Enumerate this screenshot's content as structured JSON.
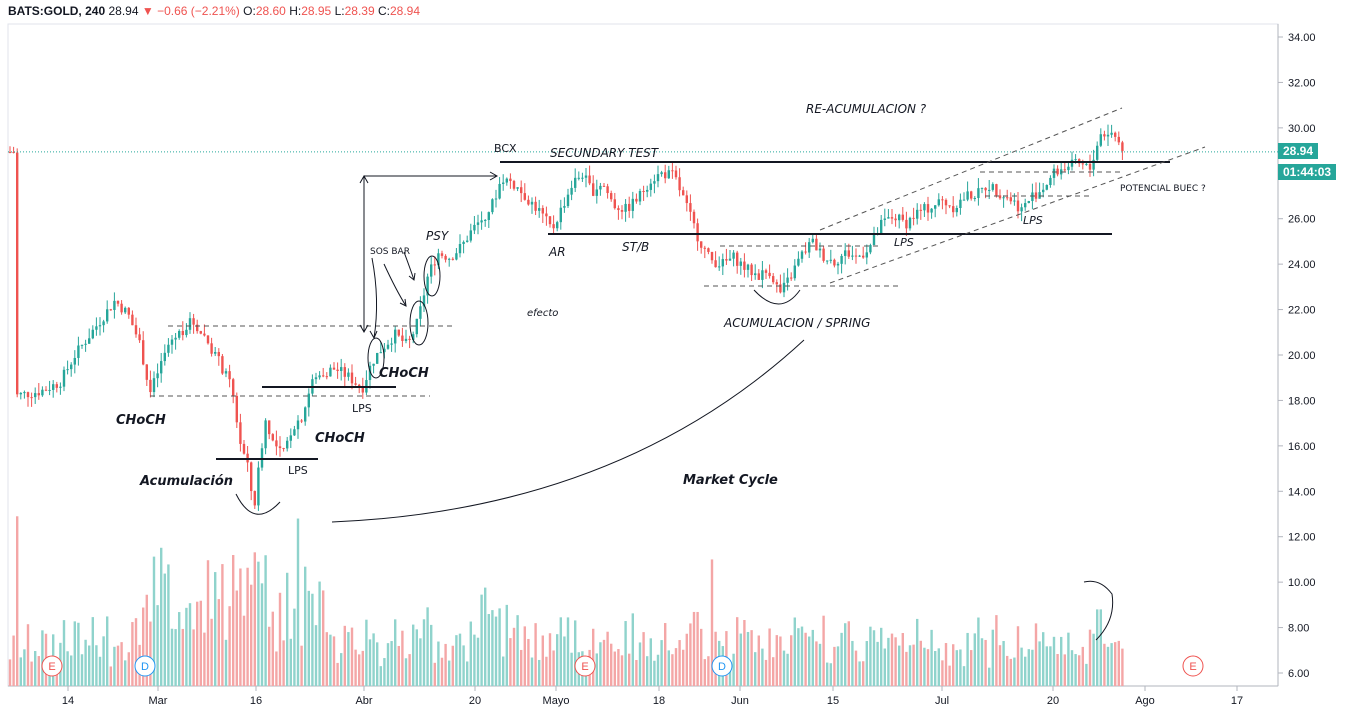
{
  "header": {
    "symbol": "BATS:GOLD, 240",
    "last": "28.94",
    "arrow": "▼",
    "change": "−0.66 (−2.21%)",
    "o_label": "O:",
    "o_value": "28.60",
    "h_label": "H:",
    "h_value": "28.95",
    "l_label": "L:",
    "l_value": "28.39",
    "c_label": "C:",
    "c_value": "28.94"
  },
  "price_tags": {
    "last_price": "28.94",
    "countdown": "01:44:03"
  },
  "colors": {
    "up": "#26a69a",
    "down": "#ef5350",
    "vol_up": "#8fd3cc",
    "vol_down": "#f4a6a6",
    "price_line": "#26a69a",
    "grid_border": "#d1d4dc",
    "annotation": "#131722"
  },
  "chart_data": {
    "type": "candlestick",
    "y_axis": {
      "range": [
        5.6,
        35.0
      ],
      "ticks": [
        "34.00",
        "32.00",
        "30.00",
        "28.00",
        "26.00",
        "24.00",
        "22.00",
        "20.00",
        "18.00",
        "16.00",
        "14.00",
        "12.00",
        "10.00",
        "8.00",
        "6.00"
      ]
    },
    "x_axis": {
      "ticks": [
        "14",
        "Mar",
        "16",
        "Abr",
        "20",
        "Mayo",
        "18",
        "Jun",
        "15",
        "Jul",
        "20",
        "Ago",
        "17"
      ]
    },
    "events": [
      "E",
      "D",
      "E",
      "D",
      "E"
    ],
    "annotations": {
      "choch_left": "CHoCH",
      "acumulacion": "Acumulación",
      "choch_mid": "CHoCH",
      "lps_1": "LPS",
      "lps_2": "LPS",
      "choch_upper": "CHoCH",
      "sos_bar": "SOS BAR",
      "psy": "PSY",
      "bcx": "BCX",
      "secundary_test": "SECUNDARY TEST",
      "ar": "AR",
      "st_b": "ST/B",
      "efecto": "efecto",
      "acumulacion_spring": "ACUMULACION / SPRING",
      "market_cycle": "Market Cycle",
      "re_acumulacion": "RE-ACUMULACION ?",
      "lps_3": "LPS",
      "lps_4": "LPS",
      "potencial_buec": "POTENCIAL BUEC ?"
    },
    "price_path": [
      [
        14,
        18.2
      ],
      [
        40,
        18.4
      ],
      [
        60,
        18.8
      ],
      [
        75,
        20.0
      ],
      [
        95,
        21.2
      ],
      [
        115,
        22.4
      ],
      [
        128,
        21.8
      ],
      [
        140,
        20.5
      ],
      [
        150,
        18.3
      ],
      [
        160,
        19.5
      ],
      [
        170,
        20.6
      ],
      [
        180,
        21.0
      ],
      [
        192,
        21.5
      ],
      [
        205,
        20.8
      ],
      [
        218,
        19.8
      ],
      [
        232,
        18.5
      ],
      [
        240,
        16.2
      ],
      [
        248,
        15.0
      ],
      [
        254,
        13.2
      ],
      [
        260,
        15.5
      ],
      [
        266,
        17.2
      ],
      [
        274,
        16.0
      ],
      [
        283,
        15.6
      ],
      [
        292,
        16.8
      ],
      [
        302,
        17.3
      ],
      [
        312,
        18.8
      ],
      [
        322,
        19.2
      ],
      [
        335,
        19.4
      ],
      [
        350,
        19.0
      ],
      [
        362,
        18.5
      ],
      [
        372,
        19.7
      ],
      [
        382,
        20.3
      ],
      [
        395,
        20.9
      ],
      [
        408,
        20.4
      ],
      [
        418,
        21.5
      ],
      [
        428,
        23.5
      ],
      [
        438,
        24.5
      ],
      [
        450,
        24.3
      ],
      [
        462,
        24.8
      ],
      [
        472,
        25.5
      ],
      [
        482,
        26.0
      ],
      [
        492,
        26.6
      ],
      [
        502,
        27.8
      ],
      [
        512,
        27.6
      ],
      [
        525,
        27.0
      ],
      [
        540,
        26.3
      ],
      [
        552,
        25.5
      ],
      [
        562,
        26.5
      ],
      [
        572,
        27.5
      ],
      [
        582,
        28.0
      ],
      [
        592,
        27.2
      ],
      [
        602,
        27.6
      ],
      [
        614,
        26.6
      ],
      [
        626,
        26.4
      ],
      [
        638,
        26.9
      ],
      [
        650,
        27.7
      ],
      [
        662,
        28.0
      ],
      [
        674,
        27.9
      ],
      [
        686,
        26.6
      ],
      [
        698,
        25.2
      ],
      [
        710,
        24.2
      ],
      [
        722,
        24.0
      ],
      [
        734,
        24.3
      ],
      [
        746,
        23.8
      ],
      [
        758,
        23.5
      ],
      [
        770,
        23.7
      ],
      [
        780,
        22.7
      ],
      [
        790,
        23.4
      ],
      [
        800,
        24.3
      ],
      [
        812,
        25.0
      ],
      [
        822,
        24.4
      ],
      [
        834,
        24.1
      ],
      [
        846,
        24.5
      ],
      [
        858,
        24.3
      ],
      [
        870,
        24.8
      ],
      [
        882,
        25.8
      ],
      [
        894,
        26.1
      ],
      [
        906,
        25.8
      ],
      [
        918,
        26.3
      ],
      [
        930,
        26.5
      ],
      [
        942,
        26.8
      ],
      [
        954,
        26.5
      ],
      [
        966,
        27.0
      ],
      [
        978,
        27.1
      ],
      [
        988,
        27.5
      ],
      [
        998,
        27.2
      ],
      [
        1010,
        26.9
      ],
      [
        1022,
        26.4
      ],
      [
        1032,
        27.0
      ],
      [
        1042,
        27.3
      ],
      [
        1054,
        28.0
      ],
      [
        1066,
        28.3
      ],
      [
        1078,
        28.4
      ],
      [
        1090,
        28.2
      ],
      [
        1100,
        29.7
      ],
      [
        1110,
        29.8
      ],
      [
        1118,
        29.5
      ],
      [
        1124,
        28.94
      ]
    ]
  }
}
